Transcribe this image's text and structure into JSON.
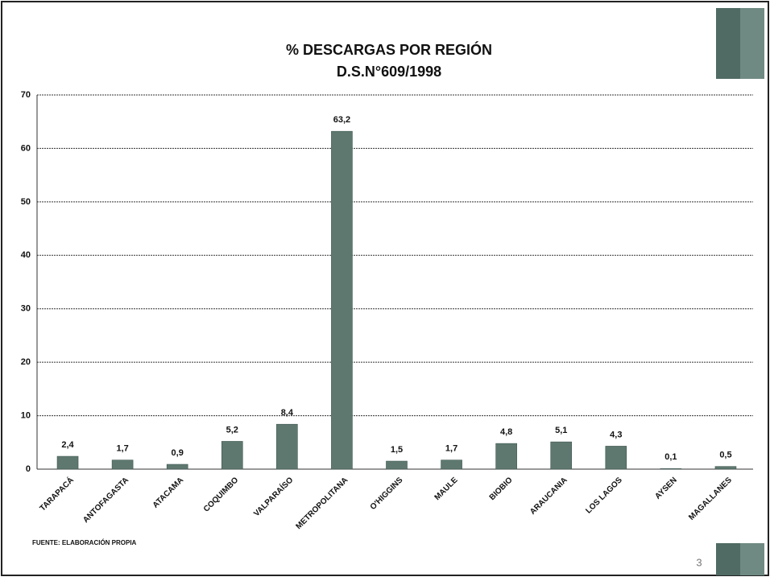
{
  "chart_data": {
    "type": "bar",
    "title": "% DESCARGAS POR REGIÓN",
    "subtitle": "D.S.N°609/1998",
    "categories": [
      "TARAPACÁ",
      "ANTOFAGASTA",
      "ATACAMA",
      "COQUIMBO",
      "VALPARAÍSO",
      "METROPOLITANA",
      "O'HIGGINS",
      "MAULE",
      "BIOBIO",
      "ARAUCANIA",
      "LOS LAGOS",
      "AYSEN",
      "MAGALLANES"
    ],
    "values": [
      2.4,
      1.7,
      0.9,
      5.2,
      8.4,
      63.2,
      1.5,
      1.7,
      4.8,
      5.1,
      4.3,
      0.1,
      0.5
    ],
    "value_labels": [
      "2,4",
      "1,7",
      "0,9",
      "5,2",
      "8,4",
      "63,2",
      "1,5",
      "1,7",
      "4,8",
      "5,1",
      "4,3",
      "0,1",
      "0,5"
    ],
    "color": "#5e786f",
    "ylim": [
      0,
      70
    ],
    "yticks": [
      0,
      10,
      20,
      30,
      40,
      50,
      60,
      70
    ],
    "grid": true
  },
  "source_note": "FUENTE: ELABORACIÓN PROPIA",
  "page_number": 3
}
